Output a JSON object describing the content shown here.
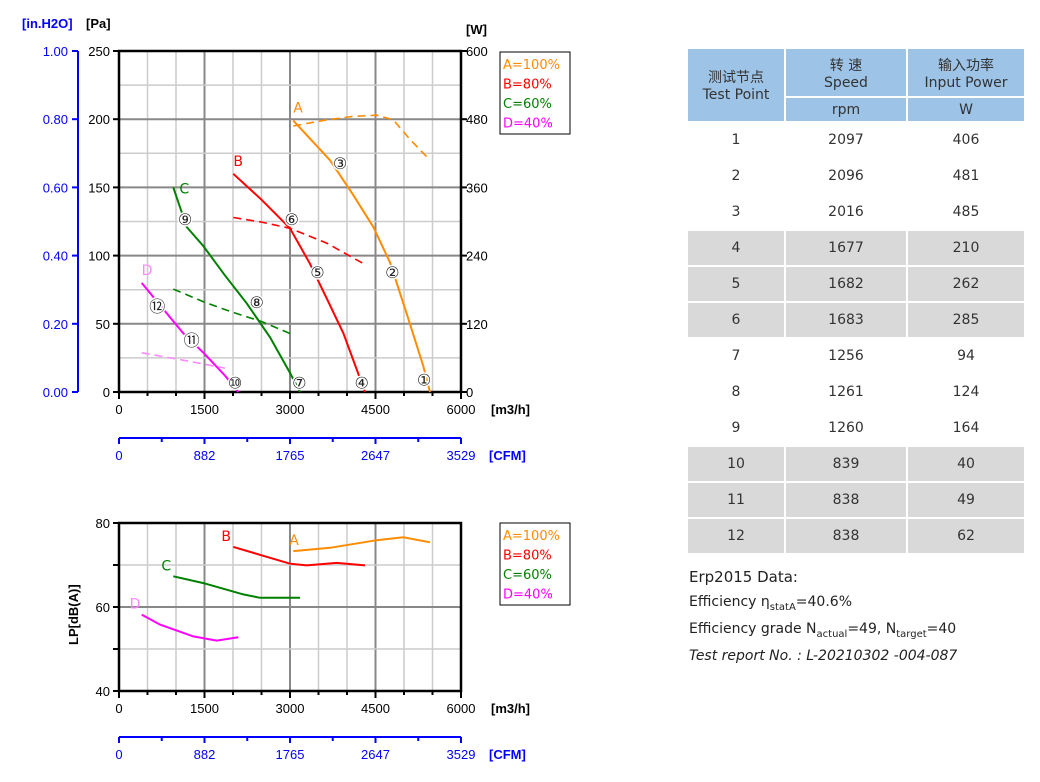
{
  "chart_data": [
    {
      "type": "line",
      "title": "",
      "xlabel": "[m3/h]",
      "x2label": "[CFM]",
      "ylabel_left": "[Pa]",
      "ylabel_left2": "[in.H2O]",
      "ylabel_right": "[W]",
      "xlim": [
        0,
        6000
      ],
      "ylim": [
        0,
        250
      ],
      "y2lim": [
        0,
        600
      ],
      "y3lim": [
        0,
        1.0
      ],
      "xticks": [
        "0",
        "1500",
        "3000",
        "4500",
        "6000"
      ],
      "cfm_ticks": [
        "0",
        "882",
        "1765",
        "2647",
        "3529"
      ],
      "yticks": [
        "0",
        "50",
        "100",
        "150",
        "200",
        "250"
      ],
      "inh2o_ticks": [
        "0.00",
        "0.20",
        "0.40",
        "0.60",
        "0.80",
        "1.00"
      ],
      "wticks": [
        "0",
        "120",
        "240",
        "360",
        "480",
        "600"
      ],
      "grid": true,
      "legend_position": "top-right",
      "legend": [
        "A=100%",
        "B=80%",
        "C=60%",
        "D=40%"
      ],
      "series": [
        {
          "name": "A",
          "color": "#ff8c00",
          "pressure": [
            [
              3058,
              199
            ],
            [
              3700,
              170
            ],
            [
              4100,
              145
            ],
            [
              4462,
              121
            ],
            [
              4754,
              95
            ],
            [
              5050,
              57
            ],
            [
              5339,
              19
            ],
            [
              5456,
              0
            ]
          ],
          "power": [
            [
              3058,
              468
            ],
            [
              3600,
              478
            ],
            [
              4100,
              485
            ],
            [
              4521,
              487
            ],
            [
              4812,
              479
            ],
            [
              5100,
              445
            ],
            [
              5456,
              408
            ]
          ]
        },
        {
          "name": "B",
          "color": "#ff0000",
          "pressure": [
            [
              2006,
              160
            ],
            [
              2500,
              141
            ],
            [
              3000,
              120
            ],
            [
              3351,
              94
            ],
            [
              3650,
              68
            ],
            [
              3936,
              43
            ],
            [
              4316,
              0
            ]
          ],
          "power": [
            [
              2006,
              307
            ],
            [
              2500,
              299
            ],
            [
              3000,
              288
            ],
            [
              3643,
              262
            ],
            [
              4287,
              226
            ]
          ]
        },
        {
          "name": "C",
          "color": "#008000",
          "pressure": [
            [
              953,
              150
            ],
            [
              1187,
              121
            ],
            [
              1480,
              107
            ],
            [
              1850,
              86
            ],
            [
              2240,
              65
            ],
            [
              2650,
              40
            ],
            [
              3000,
              14
            ],
            [
              3175,
              0
            ]
          ],
          "power": [
            [
              953,
              181
            ],
            [
              1500,
              158
            ],
            [
              2000,
              140
            ],
            [
              2500,
              124
            ],
            [
              3000,
              103
            ]
          ]
        },
        {
          "name": "D",
          "color": "#ff00ff",
          "dashcolor": "#ff88ff",
          "pressure": [
            [
              398,
              80
            ],
            [
              750,
              62
            ],
            [
              1128,
              43
            ],
            [
              1500,
              28
            ],
            [
              1860,
              12
            ],
            [
              2093,
              0
            ]
          ],
          "power": [
            [
              398,
              69
            ],
            [
              1128,
              56
            ],
            [
              1860,
              42
            ]
          ]
        }
      ],
      "test_point_labels": [
        {
          "label": "①",
          "x": 5351,
          "y": 9
        },
        {
          "label": "②",
          "x": 4794,
          "y": 88
        },
        {
          "label": "③",
          "x": 3877,
          "y": 168
        },
        {
          "label": "④",
          "x": 4258,
          "y": 7
        },
        {
          "label": "⑤",
          "x": 3480,
          "y": 88
        },
        {
          "label": "⑥",
          "x": 3030,
          "y": 127
        },
        {
          "label": "⑦",
          "x": 3163,
          "y": 7
        },
        {
          "label": "⑧",
          "x": 2415,
          "y": 66
        },
        {
          "label": "⑨",
          "x": 1158,
          "y": 127
        },
        {
          "label": "⑩",
          "x": 2035,
          "y": 7
        },
        {
          "label": "⑪",
          "x": 1275,
          "y": 38
        },
        {
          "label": "⑫",
          "x": 672,
          "y": 63
        }
      ]
    },
    {
      "type": "line",
      "title": "",
      "ylabel": "LP[dB(A)]",
      "xlabel": "[m3/h]",
      "x2label": "[CFM]",
      "xlim": [
        0,
        6000
      ],
      "ylim": [
        40,
        80
      ],
      "xticks": [
        "0",
        "1500",
        "3000",
        "4500",
        "6000"
      ],
      "cfm_ticks": [
        "0",
        "882",
        "1765",
        "2647",
        "3529"
      ],
      "yticks": [
        "40",
        "60",
        "80"
      ],
      "grid": true,
      "legend": [
        "A=100%",
        "B=80%",
        "C=60%",
        "D=40%"
      ],
      "legend_position": "right",
      "series": [
        {
          "name": "A",
          "color": "#ff8c00",
          "values": [
            [
              3058,
              73.3
            ],
            [
              3702,
              74.1
            ],
            [
              4521,
              75.9
            ],
            [
              4988,
              76.6
            ],
            [
              5456,
              75.4
            ]
          ]
        },
        {
          "name": "B",
          "color": "#ff0000",
          "values": [
            [
              2006,
              74.3
            ],
            [
              2532,
              72.2
            ],
            [
              3000,
              70.3
            ],
            [
              3293,
              69.9
            ],
            [
              3819,
              70.5
            ],
            [
              4316,
              69.9
            ]
          ]
        },
        {
          "name": "C",
          "color": "#008000",
          "values": [
            [
              953,
              67.3
            ],
            [
              1480,
              65.7
            ],
            [
              2181,
              63
            ],
            [
              2474,
              62.2
            ],
            [
              3175,
              62.2
            ]
          ]
        },
        {
          "name": "D",
          "color": "#ff00ff",
          "labelcolor": "#ff88ff",
          "values": [
            [
              398,
              58.2
            ],
            [
              719,
              55.8
            ],
            [
              1304,
              53
            ],
            [
              1714,
              52
            ],
            [
              2093,
              52.8
            ]
          ]
        }
      ]
    }
  ],
  "table": {
    "headers": {
      "c1": "测试节点",
      "c1b": "Test Point",
      "c2": "转 速",
      "c2b": "Speed",
      "c2u": "rpm",
      "c3": "输入功率",
      "c3b": "Input Power",
      "c3u": "W"
    },
    "rows": [
      [
        "1",
        "2097",
        "406"
      ],
      [
        "2",
        "2096",
        "481"
      ],
      [
        "3",
        "2016",
        "485"
      ],
      [
        "4",
        "1677",
        "210"
      ],
      [
        "5",
        "1682",
        "262"
      ],
      [
        "6",
        "1683",
        "285"
      ],
      [
        "7",
        "1256",
        "94"
      ],
      [
        "8",
        "1261",
        "124"
      ],
      [
        "9",
        "1260",
        "164"
      ],
      [
        "10",
        "839",
        "40"
      ],
      [
        "11",
        "838",
        "49"
      ],
      [
        "12",
        "838",
        "62"
      ]
    ]
  },
  "erp": {
    "title": "Erp2015  Data:",
    "eff_label": "Efficiency η",
    "eff_sub": "statA",
    "eff_value": "=40.6%",
    "grade_label": "Efficiency grade  N",
    "grade_sub1": "actual",
    "grade_val1": "=49, N",
    "grade_sub2": "target",
    "grade_val2": "=40",
    "report": "Test report No.  : L-20210302 -004-087"
  }
}
